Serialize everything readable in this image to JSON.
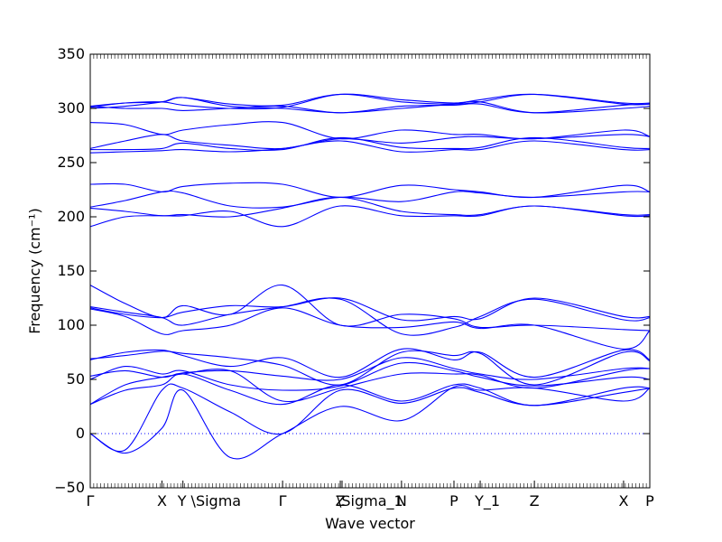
{
  "chart_data": {
    "type": "line",
    "xlabel": "Wave vector",
    "ylabel": "Frequency (cm⁻¹)",
    "ylim": [
      -50,
      350
    ],
    "yticks": [
      -50,
      0,
      50,
      100,
      150,
      200,
      250,
      300,
      350
    ],
    "xlim": [
      0,
      32
    ],
    "kpoints": [
      {
        "label": "Γ",
        "x": 0
      },
      {
        "label": "X",
        "x": 4.1
      },
      {
        "label": "Y \\Sigma",
        "x": 5.3
      },
      {
        "label": "Γ",
        "x": 11.0
      },
      {
        "label": "Z",
        "x": 14.3
      },
      {
        "label": "\\Sigma_1",
        "x": 14.4
      },
      {
        "label": "N",
        "x": 17.8
      },
      {
        "label": "P",
        "x": 20.8
      },
      {
        "label": "Y_1",
        "x": 22.3
      },
      {
        "label": "Z",
        "x": 25.4
      },
      {
        "label": "X",
        "x": 30.5
      },
      {
        "label": "P",
        "x": 32.0
      }
    ],
    "zero_line": 0,
    "color": "#0000ff",
    "series": [
      {
        "x": [
          0,
          2,
          4.1,
          5.3,
          8,
          11,
          14.3,
          17.8,
          20.8,
          22.3,
          25.4,
          30.5,
          32
        ],
        "y": [
          0,
          -15,
          40,
          42,
          20,
          0,
          40,
          28,
          42,
          38,
          26,
          38,
          42
        ]
      },
      {
        "x": [
          0,
          2,
          4.1,
          5.3,
          8,
          11,
          14.3,
          17.8,
          20.8,
          22.3,
          25.4,
          30.5,
          32
        ],
        "y": [
          0,
          -18,
          5,
          40,
          -22,
          0,
          25,
          12,
          43,
          40,
          42,
          30,
          42
        ]
      },
      {
        "x": [
          0,
          2,
          4.1,
          5.3,
          8,
          11,
          14.3,
          17.8,
          20.8,
          22.3,
          25.4,
          30.5,
          32
        ],
        "y": [
          27,
          40,
          45,
          55,
          40,
          27,
          45,
          30,
          45,
          42,
          26,
          42,
          42
        ]
      },
      {
        "x": [
          0,
          2,
          4.1,
          5.3,
          8,
          11,
          14.3,
          17.8,
          20.8,
          22.3,
          25.4,
          30.5,
          32
        ],
        "y": [
          27,
          45,
          52,
          55,
          58,
          30,
          42,
          55,
          55,
          54,
          42,
          58,
          60
        ]
      },
      {
        "x": [
          0,
          2,
          4.1,
          5.3,
          8,
          11,
          14.3,
          17.8,
          20.8,
          22.3,
          25.4,
          30.5,
          32
        ],
        "y": [
          50,
          62,
          55,
          58,
          45,
          40,
          44,
          65,
          58,
          52,
          44,
          52,
          50
        ]
      },
      {
        "x": [
          0,
          2,
          4.1,
          5.3,
          8,
          11,
          14.3,
          17.8,
          20.8,
          22.3,
          25.4,
          30.5,
          32
        ],
        "y": [
          53,
          58,
          52,
          56,
          58,
          53,
          50,
          70,
          60,
          55,
          50,
          60,
          60
        ]
      },
      {
        "x": [
          0,
          2,
          4.1,
          5.3,
          8,
          11,
          14.3,
          17.8,
          20.8,
          22.3,
          25.4,
          30.5,
          32
        ],
        "y": [
          68,
          75,
          77,
          72,
          62,
          70,
          52,
          78,
          68,
          75,
          52,
          77,
          68
        ]
      },
      {
        "x": [
          0,
          2,
          4.1,
          5.3,
          8,
          11,
          14.3,
          17.8,
          20.8,
          22.3,
          25.4,
          30.5,
          32
        ],
        "y": [
          69,
          72,
          76,
          74,
          70,
          63,
          45,
          75,
          72,
          74,
          45,
          75,
          67
        ]
      },
      {
        "x": [
          0,
          2,
          4.1,
          5.3,
          8,
          11,
          14.3,
          17.8,
          20.8,
          22.3,
          25.4,
          30.5,
          32
        ],
        "y": [
          115,
          108,
          92,
          95,
          100,
          116,
          100,
          98,
          103,
          97,
          100,
          78,
          95
        ]
      },
      {
        "x": [
          0,
          2,
          4.1,
          5.3,
          8,
          11,
          14.3,
          17.8,
          20.8,
          22.3,
          25.4,
          30.5,
          32
        ],
        "y": [
          117,
          112,
          107,
          100,
          110,
          117,
          124,
          92,
          98,
          108,
          124,
          105,
          107
        ]
      },
      {
        "x": [
          0,
          2,
          4.1,
          5.3,
          8,
          11,
          14.3,
          17.8,
          20.8,
          22.3,
          25.4,
          30.5,
          32
        ],
        "y": [
          137,
          120,
          107,
          118,
          110,
          137,
          100,
          110,
          106,
          98,
          100,
          96,
          95
        ]
      },
      {
        "x": [
          0,
          2,
          4.1,
          5.3,
          8,
          11,
          14.3,
          17.8,
          20.8,
          22.3,
          25.4,
          30.5,
          32
        ],
        "y": [
          116,
          110,
          107,
          112,
          118,
          117,
          125,
          105,
          108,
          106,
          125,
          108,
          108
        ]
      },
      {
        "x": [
          0,
          2,
          4.1,
          5.3,
          8,
          11,
          14.3,
          17.8,
          20.8,
          22.3,
          25.4,
          30.5,
          32
        ],
        "y": [
          191,
          200,
          201,
          201,
          205,
          191,
          210,
          201,
          201,
          201,
          210,
          201,
          201
        ]
      },
      {
        "x": [
          0,
          2,
          4.1,
          5.3,
          8,
          11,
          14.3,
          17.8,
          20.8,
          22.3,
          25.4,
          30.5,
          32
        ],
        "y": [
          208,
          205,
          201,
          202,
          200,
          208,
          218,
          205,
          202,
          202,
          210,
          202,
          202
        ]
      },
      {
        "x": [
          0,
          2,
          4.1,
          5.3,
          8,
          11,
          14.3,
          17.8,
          20.8,
          22.3,
          25.4,
          30.5,
          32
        ],
        "y": [
          209,
          215,
          223,
          222,
          210,
          209,
          218,
          214,
          223,
          222,
          218,
          223,
          223
        ]
      },
      {
        "x": [
          0,
          2,
          4.1,
          5.3,
          8,
          11,
          14.3,
          17.8,
          20.8,
          22.3,
          25.4,
          30.5,
          32
        ],
        "y": [
          230,
          230,
          223,
          228,
          231,
          230,
          218,
          229,
          225,
          223,
          218,
          229,
          223
        ]
      },
      {
        "x": [
          0,
          2,
          4.1,
          5.3,
          8,
          11,
          14.3,
          17.8,
          20.8,
          22.3,
          25.4,
          30.5,
          32
        ],
        "y": [
          259,
          260,
          261,
          262,
          260,
          263,
          270,
          260,
          262,
          262,
          270,
          262,
          262
        ]
      },
      {
        "x": [
          0,
          2,
          4.1,
          5.3,
          8,
          11,
          14.3,
          17.8,
          20.8,
          22.3,
          25.4,
          30.5,
          32
        ],
        "y": [
          262,
          262,
          263,
          268,
          263,
          262,
          273,
          264,
          263,
          264,
          273,
          264,
          263
        ]
      },
      {
        "x": [
          0,
          2,
          4.1,
          5.3,
          8,
          11,
          14.3,
          17.8,
          20.8,
          22.3,
          25.4,
          30.5,
          32
        ],
        "y": [
          263,
          270,
          276,
          270,
          266,
          263,
          272,
          268,
          273,
          274,
          272,
          276,
          274
        ]
      },
      {
        "x": [
          0,
          2,
          4.1,
          5.3,
          8,
          11,
          14.3,
          17.8,
          20.8,
          22.3,
          25.4,
          30.5,
          32
        ],
        "y": [
          287,
          285,
          276,
          280,
          285,
          287,
          272,
          280,
          276,
          276,
          272,
          280,
          274
        ]
      },
      {
        "x": [
          0,
          2,
          4.1,
          5.3,
          8,
          11,
          14.3,
          17.8,
          20.8,
          22.3,
          25.4,
          30.5,
          32
        ],
        "y": [
          300,
          302,
          306,
          310,
          302,
          300,
          296,
          300,
          304,
          306,
          296,
          300,
          302
        ]
      },
      {
        "x": [
          0,
          2,
          4.1,
          5.3,
          8,
          11,
          14.3,
          17.8,
          20.8,
          22.3,
          25.4,
          30.5,
          32
        ],
        "y": [
          301,
          305,
          306,
          303,
          300,
          301,
          313,
          308,
          305,
          308,
          313,
          304,
          304
        ]
      },
      {
        "x": [
          0,
          2,
          4.1,
          5.3,
          8,
          11,
          14.3,
          17.8,
          20.8,
          22.3,
          25.4,
          30.5,
          32
        ],
        "y": [
          302,
          300,
          300,
          298,
          300,
          302,
          296,
          302,
          303,
          304,
          296,
          303,
          304
        ]
      },
      {
        "x": [
          0,
          2,
          4.1,
          5.3,
          8,
          11,
          14.3,
          17.8,
          20.8,
          22.3,
          25.4,
          30.5,
          32
        ],
        "y": [
          302,
          305,
          306,
          310,
          304,
          303,
          313,
          306,
          304,
          306,
          313,
          305,
          305
        ]
      }
    ]
  }
}
